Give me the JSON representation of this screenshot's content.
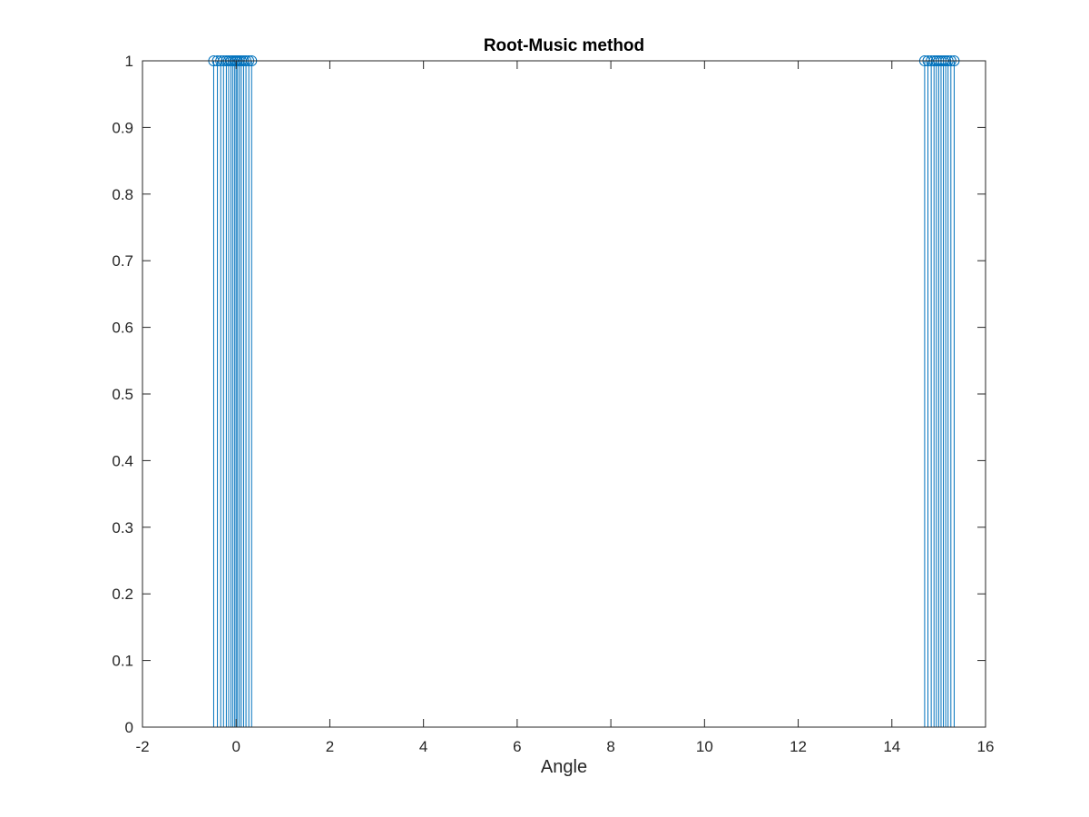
{
  "chart_data": {
    "type": "stem",
    "title": "Root-Music method",
    "xlabel": "Angle",
    "ylabel": "",
    "xlim": [
      -2,
      16
    ],
    "ylim": [
      0,
      1
    ],
    "xticks": [
      -2,
      0,
      2,
      4,
      6,
      8,
      10,
      12,
      14,
      16
    ],
    "yticks": [
      0,
      0.1,
      0.2,
      0.3,
      0.4,
      0.5,
      0.6,
      0.7,
      0.8,
      0.9,
      1
    ],
    "grid": false,
    "box": true,
    "marker": "circle-open",
    "color": "#0072BD",
    "series": [
      {
        "x": [
          -0.48,
          -0.4,
          -0.33,
          -0.27,
          -0.21,
          -0.16,
          -0.11,
          -0.07,
          -0.03,
          0.0,
          0.03,
          0.07,
          0.11,
          0.16,
          0.21,
          0.27,
          0.33
        ],
        "y": [
          1,
          1,
          1,
          1,
          1,
          1,
          1,
          1,
          1,
          1,
          1,
          1,
          1,
          1,
          1,
          1,
          1
        ]
      },
      {
        "x": [
          14.7,
          14.77,
          14.84,
          14.9,
          14.95,
          15.0,
          15.05,
          15.1,
          15.15,
          15.2,
          15.26,
          15.33
        ],
        "y": [
          1,
          1,
          1,
          1,
          1,
          1,
          1,
          1,
          1,
          1,
          1,
          1
        ]
      }
    ]
  }
}
